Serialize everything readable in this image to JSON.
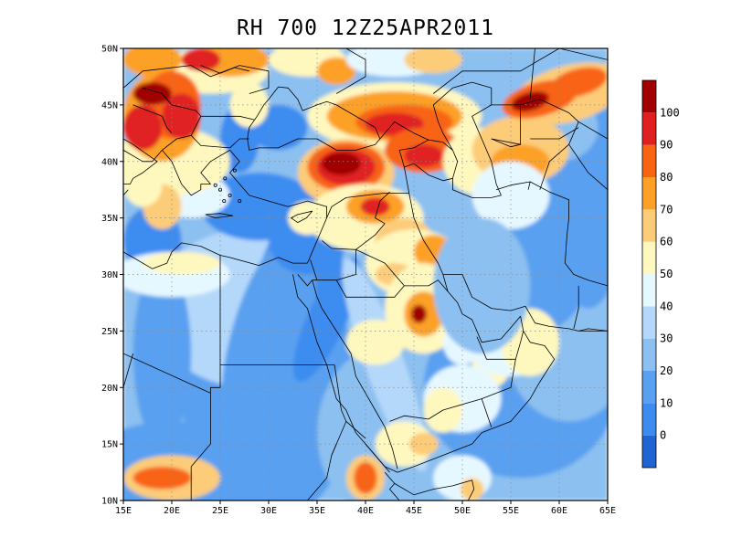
{
  "title": "RH 700 12Z25APR2011",
  "map": {
    "lon_range": [
      15,
      65
    ],
    "lat_range": [
      10,
      50
    ],
    "x_ticks": [
      "15E",
      "20E",
      "25E",
      "30E",
      "35E",
      "40E",
      "45E",
      "50E",
      "55E",
      "60E",
      "65E"
    ],
    "y_ticks": [
      "10N",
      "15N",
      "20N",
      "25N",
      "30N",
      "35N",
      "40N",
      "45N",
      "50N"
    ],
    "grid": "dotted"
  },
  "colorbar": {
    "labels": [
      "0",
      "10",
      "20",
      "30",
      "40",
      "50",
      "60",
      "70",
      "80",
      "90",
      "100"
    ],
    "colors": [
      "#2064d4",
      "#3c8cf0",
      "#5aa0f0",
      "#8cc0f0",
      "#b4d8fa",
      "#e6f8ff",
      "#fff8be",
      "#fccc78",
      "#fca028",
      "#f86414",
      "#e02020",
      "#a00000"
    ]
  }
}
